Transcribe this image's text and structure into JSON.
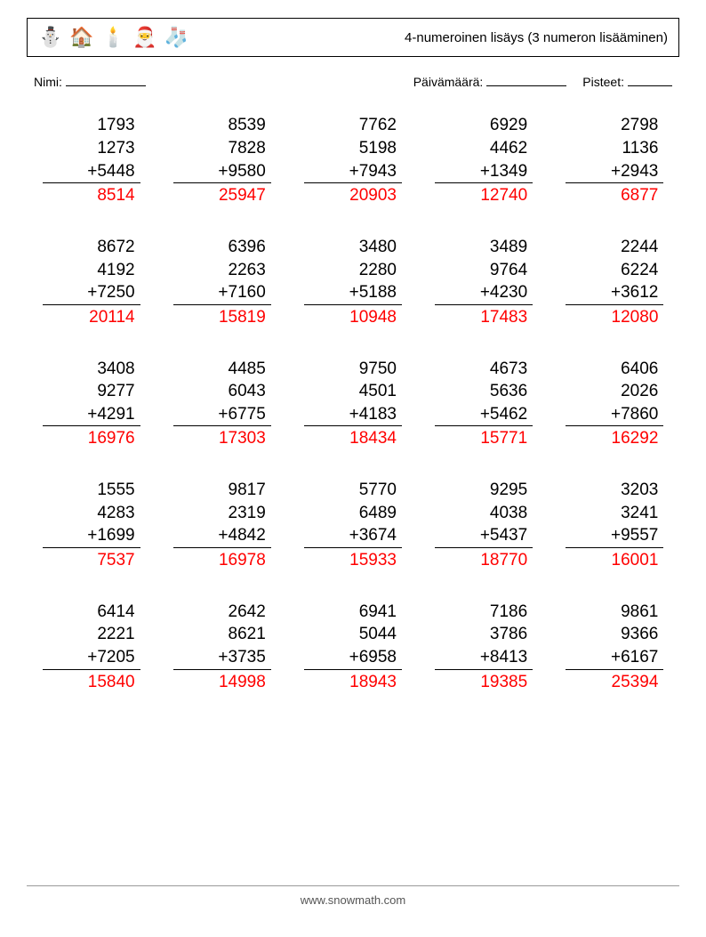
{
  "header": {
    "icons": [
      "⛄",
      "🏠",
      "🕯️",
      "🎅",
      "🧦"
    ],
    "title": "4-numeroinen lisäys (3 numeron lisääminen)"
  },
  "meta": {
    "name_label": "Nimi:",
    "date_label": "Päivämäärä:",
    "score_label": "Pisteet:"
  },
  "colors": {
    "text": "#000000",
    "answer": "#ff0000",
    "background": "#ffffff",
    "rule": "#000000",
    "footer": "#555555"
  },
  "typography": {
    "title_fontsize": 15,
    "meta_fontsize": 14,
    "problem_fontsize": 19,
    "footer_fontsize": 13,
    "font_family": "Arial"
  },
  "layout": {
    "grid_cols": 5,
    "grid_rows": 5,
    "col_gap": 30,
    "row_gap": 32,
    "problem_width": 110
  },
  "worksheet": {
    "operator": "+",
    "problems": [
      {
        "a": 1793,
        "b": 1273,
        "c": 5448,
        "ans": 8514
      },
      {
        "a": 8539,
        "b": 7828,
        "c": 9580,
        "ans": 25947
      },
      {
        "a": 7762,
        "b": 5198,
        "c": 7943,
        "ans": 20903
      },
      {
        "a": 6929,
        "b": 4462,
        "c": 1349,
        "ans": 12740
      },
      {
        "a": 2798,
        "b": 1136,
        "c": 2943,
        "ans": 6877
      },
      {
        "a": 8672,
        "b": 4192,
        "c": 7250,
        "ans": 20114
      },
      {
        "a": 6396,
        "b": 2263,
        "c": 7160,
        "ans": 15819
      },
      {
        "a": 3480,
        "b": 2280,
        "c": 5188,
        "ans": 10948
      },
      {
        "a": 3489,
        "b": 9764,
        "c": 4230,
        "ans": 17483
      },
      {
        "a": 2244,
        "b": 6224,
        "c": 3612,
        "ans": 12080
      },
      {
        "a": 3408,
        "b": 9277,
        "c": 4291,
        "ans": 16976
      },
      {
        "a": 4485,
        "b": 6043,
        "c": 6775,
        "ans": 17303
      },
      {
        "a": 9750,
        "b": 4501,
        "c": 4183,
        "ans": 18434
      },
      {
        "a": 4673,
        "b": 5636,
        "c": 5462,
        "ans": 15771
      },
      {
        "a": 6406,
        "b": 2026,
        "c": 7860,
        "ans": 16292
      },
      {
        "a": 1555,
        "b": 4283,
        "c": 1699,
        "ans": 7537
      },
      {
        "a": 9817,
        "b": 2319,
        "c": 4842,
        "ans": 16978
      },
      {
        "a": 5770,
        "b": 6489,
        "c": 3674,
        "ans": 15933
      },
      {
        "a": 9295,
        "b": 4038,
        "c": 5437,
        "ans": 18770
      },
      {
        "a": 3203,
        "b": 3241,
        "c": 9557,
        "ans": 16001
      },
      {
        "a": 6414,
        "b": 2221,
        "c": 7205,
        "ans": 15840
      },
      {
        "a": 2642,
        "b": 8621,
        "c": 3735,
        "ans": 14998
      },
      {
        "a": 6941,
        "b": 5044,
        "c": 6958,
        "ans": 18943
      },
      {
        "a": 7186,
        "b": 3786,
        "c": 8413,
        "ans": 19385
      },
      {
        "a": 9861,
        "b": 9366,
        "c": 6167,
        "ans": 25394
      }
    ]
  },
  "footer": {
    "text": "www.snowmath.com"
  }
}
